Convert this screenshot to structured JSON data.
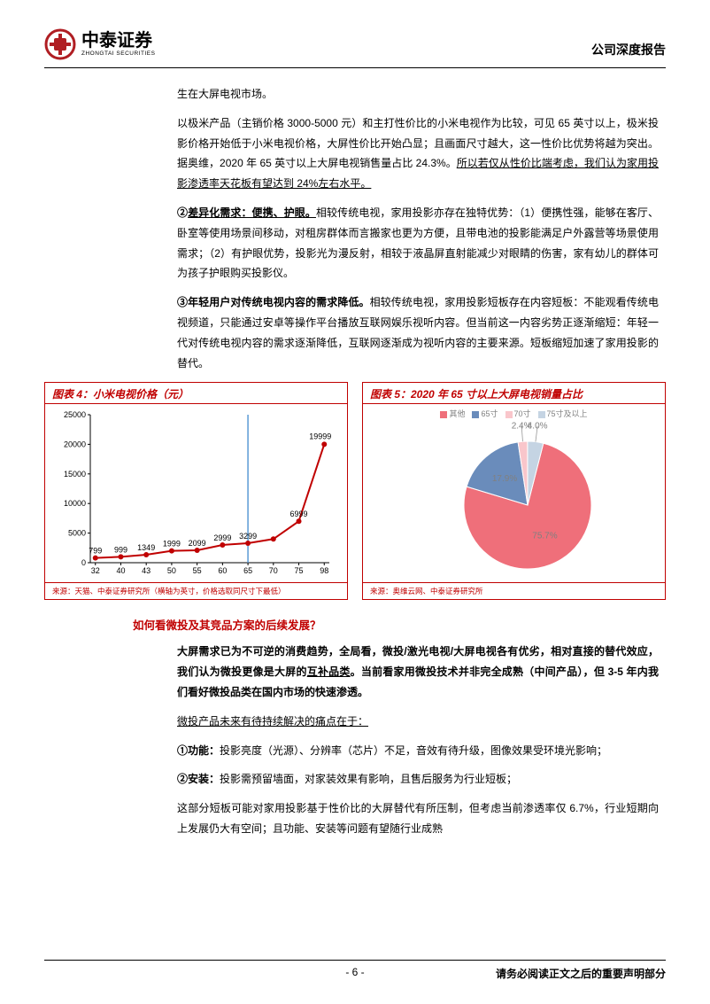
{
  "header": {
    "logo_cn": "中泰证券",
    "logo_en": "ZHONGTAI SECURITIES",
    "right": "公司深度报告"
  },
  "para": {
    "p0": "生在大屏电视市场。",
    "p1a": "以极米产品（主销价格 3000-5000 元）和主打性价比的小米电视作为比较，可见 65 英寸以上，极米投影价格开始低于小米电视价格，大屏性价比开始凸显；且画面尺寸越大，这一性价比优势将越为突出。据奥维，2020 年 65 英寸以上大屏电视销售量占比 24.3%。",
    "p1b": "所以若仅从性价比端考虑，我们认为家用投影渗透率天花板有望达到 24%左右水平。",
    "p2lead_num": "②",
    "p2lead": "差异化需求：便携、护眼。",
    "p2body": "相较传统电视，家用投影亦存在独特优势：（1）便携性强，能够在客厅、卧室等使用场景间移动，对租房群体而言搬家也更为方便，且带电池的投影能满足户外露营等场景使用需求；（2）有护眼优势，投影光为漫反射，相较于液晶屏直射能减少对眼睛的伤害，家有幼儿的群体可为孩子护眼购买投影仪。",
    "p3lead_num": "③",
    "p3lead": "年轻用户对传统电视内容的需求降低。",
    "p3body": "相较传统电视，家用投影短板存在内容短板：不能观看传统电视频道，只能通过安卓等操作平台播放互联网娱乐视听内容。但当前这一内容劣势正逐渐缩短：年轻一代对传统电视内容的需求逐渐降低，互联网逐渐成为视听内容的主要来源。短板缩短加速了家用投影的替代。"
  },
  "chart4": {
    "title": "图表 4：小米电视价格（元）",
    "source": "来源：天猫、中泰证券研究所（横轴为英寸，价格选取同尺寸下最低）",
    "type": "line",
    "x_labels": [
      "32",
      "40",
      "43",
      "50",
      "55",
      "60",
      "65",
      "70",
      "75",
      "98"
    ],
    "y_ticks": [
      0,
      5000,
      10000,
      15000,
      20000,
      25000
    ],
    "values": [
      799,
      999,
      1349,
      1999,
      2099,
      2999,
      3299,
      4000,
      6999,
      19999
    ],
    "point_labels": [
      "799",
      "999",
      "1349",
      "1999",
      "2099",
      "2999",
      "3299",
      "",
      "6999",
      "19999"
    ],
    "line_color": "#c00000",
    "marker_color": "#c00000",
    "vline_x_index": 6,
    "vline_color": "#5b9bd5",
    "axis_color": "#000000",
    "plot_bg": "#ffffff",
    "label_fontsize": 9,
    "line_width": 2,
    "marker_size": 3,
    "ymax": 25000
  },
  "chart5": {
    "title": "图表 5：2020 年 65 寸以上大屏电视销量占比",
    "source": "来源：奥维云网、中泰证券研究所",
    "type": "pie",
    "legend": [
      {
        "label": "其他",
        "color": "#ef6f7a"
      },
      {
        "label": "65寸",
        "color": "#6a8cbb"
      },
      {
        "label": "70寸",
        "color": "#f9c6cb"
      },
      {
        "label": "75寸及以上",
        "color": "#c5d4e3"
      }
    ],
    "slices": [
      {
        "label": "75.7%",
        "value": 75.7,
        "color": "#ef6f7a"
      },
      {
        "label": "17.9%",
        "value": 17.9,
        "color": "#6a8cbb"
      },
      {
        "label": "2.4%",
        "value": 2.4,
        "color": "#f9c6cb"
      },
      {
        "label": "4.0%",
        "value": 4.0,
        "color": "#c5d4e3"
      }
    ],
    "label_fontsize": 10,
    "label_color": "#808080",
    "bg": "#ffffff"
  },
  "section2": {
    "heading": "如何看微投及其竞品方案的后续发展？",
    "p1a": "大屏需求已为不可逆的消费趋势，全局看，微投/激光电视/大屏电视各有优劣，相对直接的替代效应，我们认为微投更像是大屏的",
    "p1u": "互补品类",
    "p1b": "。当前看家用微投技术并非完全成熟（中间产品），但 3-5 年内我们看好微投品类在国内市场的快速渗透。",
    "p2u": "微投产品未来有待持续解决的痛点在于：",
    "p3_num": "①",
    "p3_lead": "功能：",
    "p3": "投影亮度（光源）、分辨率（芯片）不足，音效有待升级，图像效果受环境光影响；",
    "p4_num": "②",
    "p4_lead": "安装：",
    "p4": "投影需预留墙面，对家装效果有影响，且售后服务为行业短板；",
    "p5": "这部分短板可能对家用投影基于性价比的大屏替代有所压制，但考虑当前渗透率仅 6.7%，行业短期向上发展仍大有空间；且功能、安装等问题有望随行业成熟"
  },
  "footer": {
    "page": "- 6 -",
    "right": "请务必阅读正文之后的重要声明部分"
  }
}
